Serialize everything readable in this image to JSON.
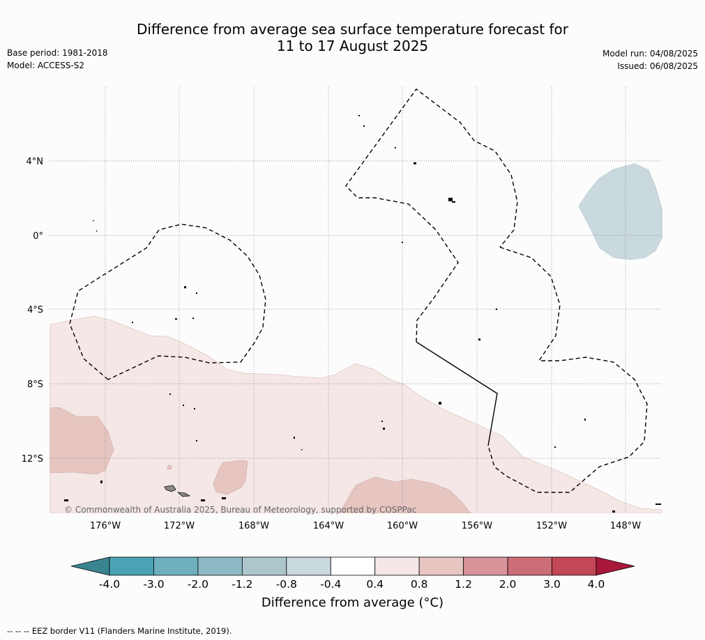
{
  "title_line1": "Difference from average sea surface temperature forecast for",
  "title_line2": "11 to 17 August 2025",
  "base_period": "Base period: 1981-2018",
  "model": "Model: ACCESS-S2",
  "model_run": "Model run: 04/08/2025",
  "issued": "Issued: 06/08/2025",
  "copyright": "© Commonwealth of Australia 2025, Bureau of Meteorology, supported by COSPPac",
  "footer_note": "--  --  -- EEZ border V11 (Flanders Marine Institute, 2019).",
  "lat_labels": [
    "4°N",
    "0°",
    "4°S",
    "8°S",
    "12°S"
  ],
  "lon_labels": [
    "176°W",
    "172°W",
    "168°W",
    "164°W",
    "160°W",
    "156°W",
    "152°W",
    "148°W"
  ],
  "colorbar": {
    "title": "Difference from average (°C)",
    "tick_labels": [
      "-4.0",
      "-3.0",
      "-2.0",
      "-1.2",
      "-0.8",
      "-0.4",
      "0.4",
      "0.8",
      "1.2",
      "2.0",
      "3.0",
      "4.0"
    ],
    "colors": [
      "#4aa3b4",
      "#6eb0bd",
      "#8eb9c4",
      "#acc6cc",
      "#c9d9dd",
      "#ffffff",
      "#f4e7e6",
      "#e7c6c2",
      "#d8949a",
      "#cc6c77",
      "#c24757"
    ],
    "under_color": "#3a8490",
    "over_color": "#a8183a"
  },
  "map": {
    "land_color": "#8a8a8a",
    "anomaly_light_warm": "#f4e7e6",
    "anomaly_warm": "#e7c6c2",
    "anomaly_cool": "#c9d9dd"
  }
}
